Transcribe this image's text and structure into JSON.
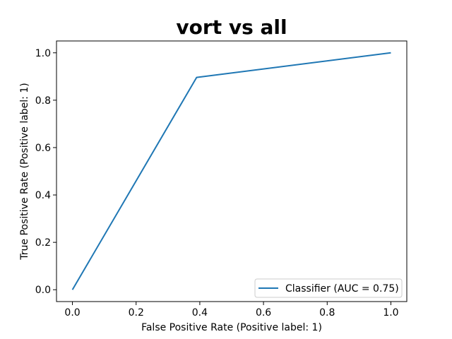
{
  "chart_data": {
    "type": "line",
    "title": "vort vs all",
    "xlabel": "False Positive Rate (Positive label: 1)",
    "ylabel": "True Positive Rate (Positive label: 1)",
    "xlim": [
      -0.05,
      1.05
    ],
    "ylim": [
      -0.05,
      1.05
    ],
    "xticks": [
      "0.0",
      "0.2",
      "0.4",
      "0.6",
      "0.8",
      "1.0"
    ],
    "yticks": [
      "0.0",
      "0.2",
      "0.4",
      "0.6",
      "0.8",
      "1.0"
    ],
    "grid": false,
    "legend_position": "lower-right",
    "series": [
      {
        "name": "Classifier (AUC = 0.75)",
        "color": "#1f77b4",
        "x": [
          0.0,
          0.39,
          1.0
        ],
        "y": [
          0.0,
          0.896,
          1.0
        ]
      }
    ]
  }
}
